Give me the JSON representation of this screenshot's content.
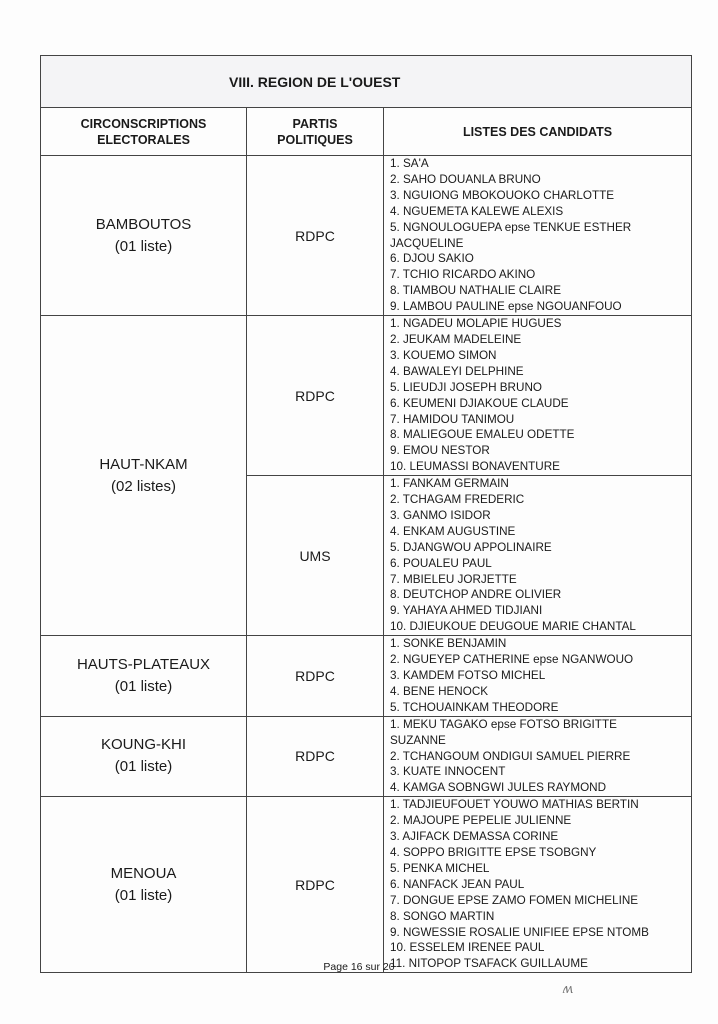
{
  "region_title": "VIII. REGION DE L'OUEST",
  "headers": {
    "circonscriptions": "CIRCONSCRIPTIONS ELECTORALES",
    "partis": "PARTIS POLITIQUES",
    "listes": "LISTES DES CANDIDATS"
  },
  "constituencies": [
    {
      "name": "BAMBOUTOS",
      "count": "(01 liste)",
      "lists": [
        {
          "party": "RDPC",
          "candidates": [
            "1. SA'A",
            "2. SAHO DOUANLA BRUNO",
            "3. NGUIONG MBOKOUOKO CHARLOTTE",
            "4. NGUEMETA KALEWE ALEXIS",
            "5. NGNOULOGUEPA epse TENKUE ESTHER",
            "JACQUELINE",
            "6. DJOU SAKIO",
            "7. TCHIO RICARDO AKINO",
            "8. TIAMBOU NATHALIE CLAIRE",
            "9. LAMBOU PAULINE epse NGOUANFOUO"
          ]
        }
      ]
    },
    {
      "name": "HAUT-NKAM",
      "count": "(02 listes)",
      "lists": [
        {
          "party": "RDPC",
          "candidates": [
            "1. NGADEU MOLAPIE HUGUES",
            "2. JEUKAM MADELEINE",
            "3. KOUEMO SIMON",
            "4. BAWALEYI DELPHINE",
            "5. LIEUDJI JOSEPH BRUNO",
            "6. KEUMENI DJIAKOUE CLAUDE",
            "7. HAMIDOU TANIMOU",
            "8. MALIEGOUE EMALEU ODETTE",
            "9. EMOU NESTOR",
            "10. LEUMASSI BONAVENTURE"
          ]
        },
        {
          "party": "UMS",
          "candidates": [
            "1. FANKAM GERMAIN",
            "2. TCHAGAM FREDERIC",
            "3. GANMO ISIDOR",
            "4. ENKAM AUGUSTINE",
            "5. DJANGWOU APPOLINAIRE",
            "6. POUALEU PAUL",
            "7. MBIELEU JORJETTE",
            "8. DEUTCHOP ANDRE OLIVIER",
            "9. YAHAYA AHMED TIDJIANI",
            "10. DJIEUKOUE DEUGOUE MARIE CHANTAL"
          ]
        }
      ]
    },
    {
      "name": "HAUTS-PLATEAUX",
      "count": "(01 liste)",
      "lists": [
        {
          "party": "RDPC",
          "candidates": [
            "1. SONKE BENJAMIN",
            "2. NGUEYEP CATHERINE epse NGANWOUO",
            "3. KAMDEM FOTSO MICHEL",
            "4. BENE HENOCK",
            "5. TCHOUAINKAM THEODORE"
          ]
        }
      ]
    },
    {
      "name": "KOUNG-KHI",
      "count": "(01 liste)",
      "lists": [
        {
          "party": "RDPC",
          "candidates": [
            "1. MEKU TAGAKO epse FOTSO BRIGITTE",
            "SUZANNE",
            "2. TCHANGOUM ONDIGUI SAMUEL PIERRE",
            "3. KUATE INNOCENT",
            "4. KAMGA SOBNGWI JULES RAYMOND"
          ]
        }
      ]
    },
    {
      "name": "MENOUA",
      "count": "(01 liste)",
      "lists": [
        {
          "party": "RDPC",
          "candidates": [
            "1. TADJIEUFOUET YOUWO MATHIAS BERTIN",
            "2. MAJOUPE PEPELIE JULIENNE",
            "3. AJIFACK DEMASSA CORINE",
            "4. SOPPO BRIGITTE EPSE TSOBGNY",
            "5. PENKA MICHEL",
            "6. NANFACK JEAN PAUL",
            "7. DONGUE EPSE ZAMO FOMEN MICHELINE",
            "8. SONGO MARTIN",
            "9. NGWESSIE ROSALIE UNIFIEE EPSE NTOMB",
            "10. ESSELEM IRENEE PAUL",
            "11. NITOPOP TSAFACK GUILLAUME"
          ]
        }
      ]
    }
  ],
  "footer": "Page 16 sur 20",
  "initials": "M"
}
